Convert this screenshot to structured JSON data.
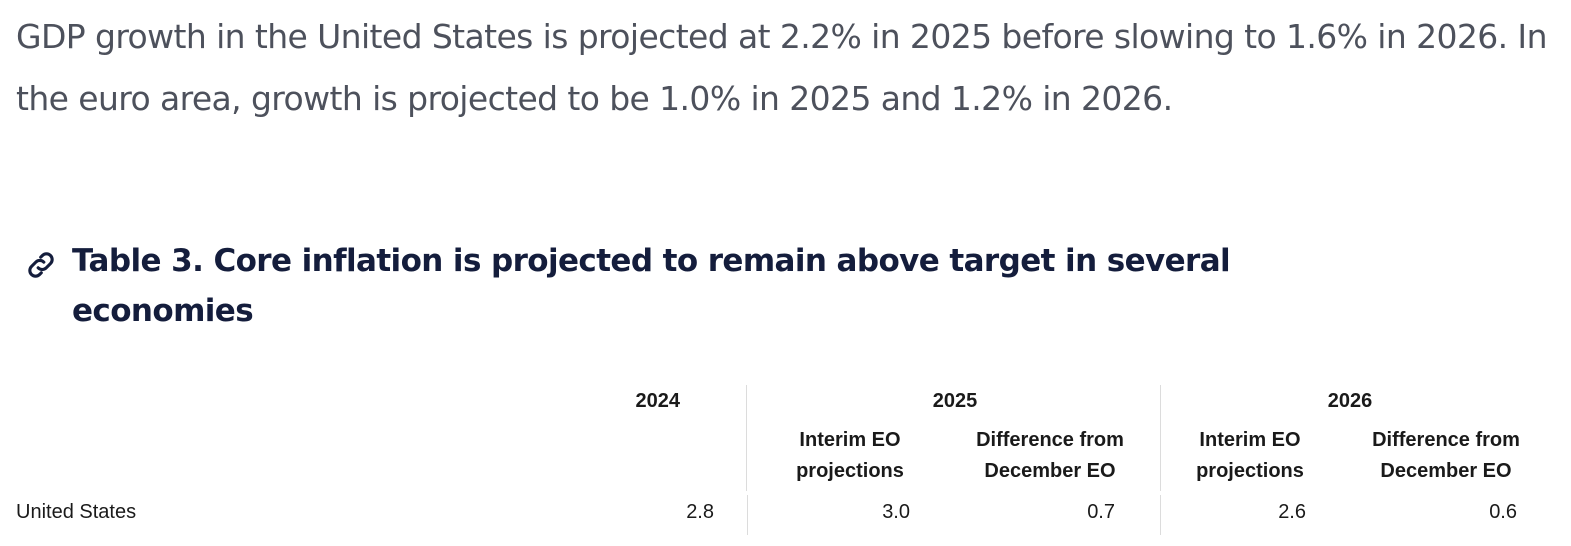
{
  "paragraph": "GDP growth in the United States is projected at 2.2% in 2025 before slowing to 1.6% in 2026. In the euro area, growth is projected to be 1.0% in 2025 and 1.2% in 2026.",
  "heading": {
    "icon": "link-icon",
    "title": "Table 3. Core inflation is projected to remain above target in several economies"
  },
  "table": {
    "year_headers": [
      "2024",
      "2025",
      "2026"
    ],
    "sub_headers": [
      {
        "line1": "Interim EO",
        "line2": "projections"
      },
      {
        "line1": "Difference from",
        "line2": "December EO"
      },
      {
        "line1": "Interim EO",
        "line2": "projections"
      },
      {
        "line1": "Difference from",
        "line2": "December EO"
      }
    ],
    "rows": [
      {
        "country": "United States",
        "values": [
          "2.8",
          "3.0",
          "0.7",
          "2.6",
          "0.6"
        ]
      }
    ]
  }
}
